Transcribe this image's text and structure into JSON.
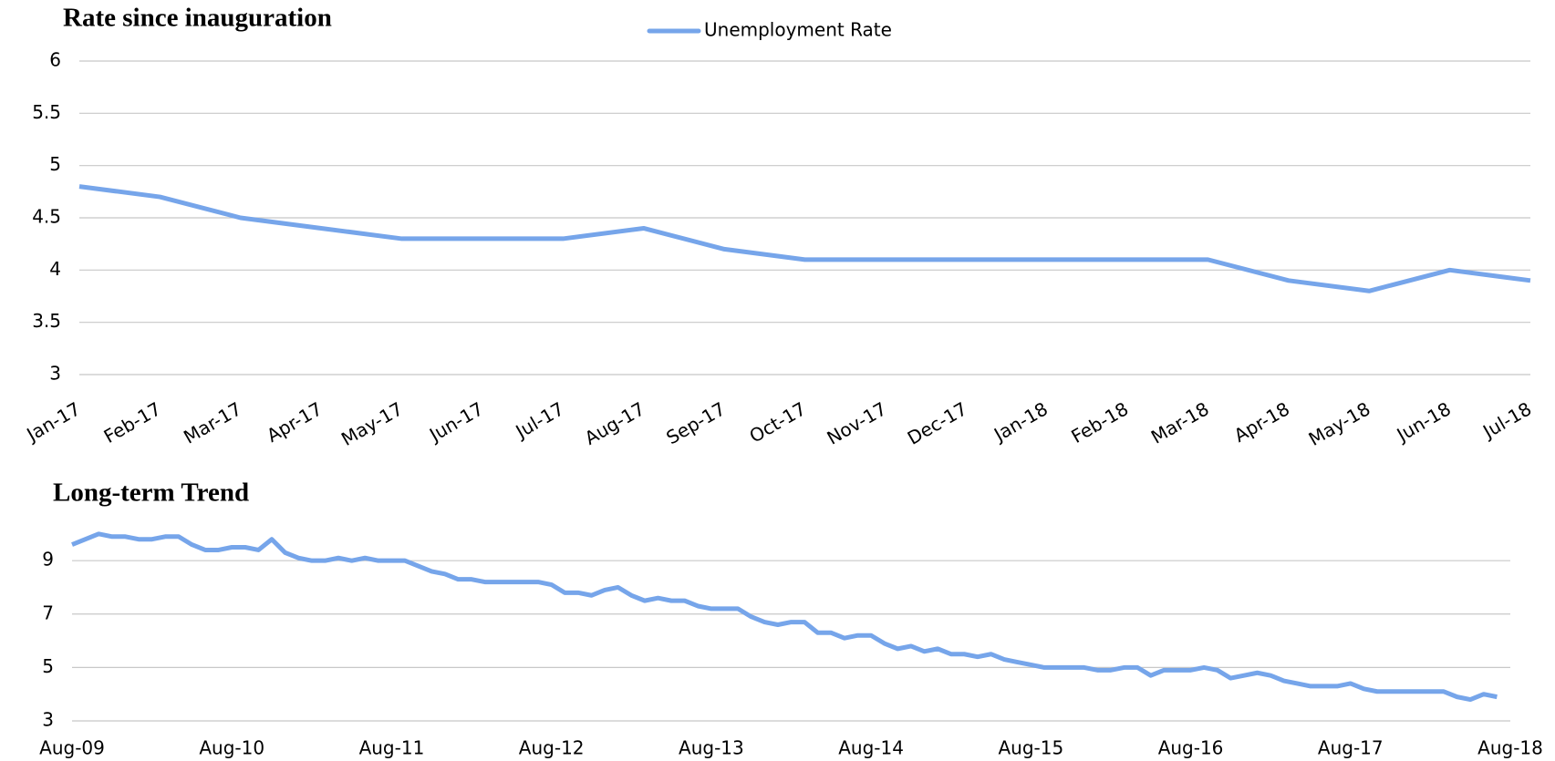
{
  "chart_data": [
    {
      "type": "line",
      "title": "Rate since inauguration",
      "categories": [
        "Jan-17",
        "Feb-17",
        "Mar-17",
        "Apr-17",
        "May-17",
        "Jun-17",
        "Jul-17",
        "Aug-17",
        "Sep-17",
        "Oct-17",
        "Nov-17",
        "Dec-17",
        "Jan-18",
        "Feb-18",
        "Mar-18",
        "Apr-18",
        "May-18",
        "Jun-18",
        "Jul-18"
      ],
      "series": [
        {
          "name": "Unemployment Rate",
          "color": "#76a5ea",
          "values": [
            4.8,
            4.7,
            4.5,
            4.4,
            4.3,
            4.3,
            4.3,
            4.4,
            4.2,
            4.1,
            4.1,
            4.1,
            4.1,
            4.1,
            4.1,
            3.9,
            3.8,
            4.0,
            3.9
          ]
        }
      ],
      "ylim": [
        3,
        6
      ],
      "yticks": [
        3,
        3.5,
        4,
        4.5,
        5,
        5.5,
        6
      ],
      "grid": true,
      "legend": "top"
    },
    {
      "type": "line",
      "title": "Long-term Trend",
      "categories": [
        "Aug-09",
        null,
        null,
        null,
        null,
        null,
        null,
        null,
        null,
        null,
        null,
        null,
        "Aug-10",
        null,
        null,
        null,
        null,
        null,
        null,
        null,
        null,
        null,
        null,
        null,
        "Aug-11",
        null,
        null,
        null,
        null,
        null,
        null,
        null,
        null,
        null,
        null,
        null,
        "Aug-12",
        null,
        null,
        null,
        null,
        null,
        null,
        null,
        null,
        null,
        null,
        null,
        "Aug-13",
        null,
        null,
        null,
        null,
        null,
        null,
        null,
        null,
        null,
        null,
        null,
        "Aug-14",
        null,
        null,
        null,
        null,
        null,
        null,
        null,
        null,
        null,
        null,
        null,
        "Aug-15",
        null,
        null,
        null,
        null,
        null,
        null,
        null,
        null,
        null,
        null,
        null,
        "Aug-16",
        null,
        null,
        null,
        null,
        null,
        null,
        null,
        null,
        null,
        null,
        null,
        "Aug-17",
        null,
        null,
        null,
        null,
        null,
        null,
        null,
        null,
        null,
        null,
        null,
        "Aug-18"
      ],
      "series": [
        {
          "name": "Unemployment Rate",
          "color": "#76a5ea",
          "values": [
            9.6,
            9.8,
            10.0,
            9.9,
            9.9,
            9.8,
            9.8,
            9.9,
            9.9,
            9.6,
            9.4,
            9.4,
            9.5,
            9.5,
            9.4,
            9.8,
            9.3,
            9.1,
            9.0,
            9.0,
            9.1,
            9.0,
            9.1,
            9.0,
            9.0,
            9.0,
            8.8,
            8.6,
            8.5,
            8.3,
            8.3,
            8.2,
            8.2,
            8.2,
            8.2,
            8.2,
            8.1,
            7.8,
            7.8,
            7.7,
            7.9,
            8.0,
            7.7,
            7.5,
            7.6,
            7.5,
            7.5,
            7.3,
            7.2,
            7.2,
            7.2,
            6.9,
            6.7,
            6.6,
            6.7,
            6.7,
            6.3,
            6.3,
            6.1,
            6.2,
            6.2,
            5.9,
            5.7,
            5.8,
            5.6,
            5.7,
            5.5,
            5.5,
            5.4,
            5.5,
            5.3,
            5.2,
            5.1,
            5.0,
            5.0,
            5.0,
            5.0,
            4.9,
            4.9,
            5.0,
            5.0,
            4.7,
            4.9,
            4.9,
            4.9,
            5.0,
            4.9,
            4.6,
            4.7,
            4.8,
            4.7,
            4.5,
            4.4,
            4.3,
            4.3,
            4.3,
            4.4,
            4.2,
            4.1,
            4.1,
            4.1,
            4.1,
            4.1,
            4.1,
            3.9,
            3.8,
            4.0,
            3.9,
            null
          ]
        }
      ],
      "ylim": [
        3,
        10.2
      ],
      "yticks": [
        3,
        5,
        7,
        9
      ],
      "grid": true
    }
  ]
}
